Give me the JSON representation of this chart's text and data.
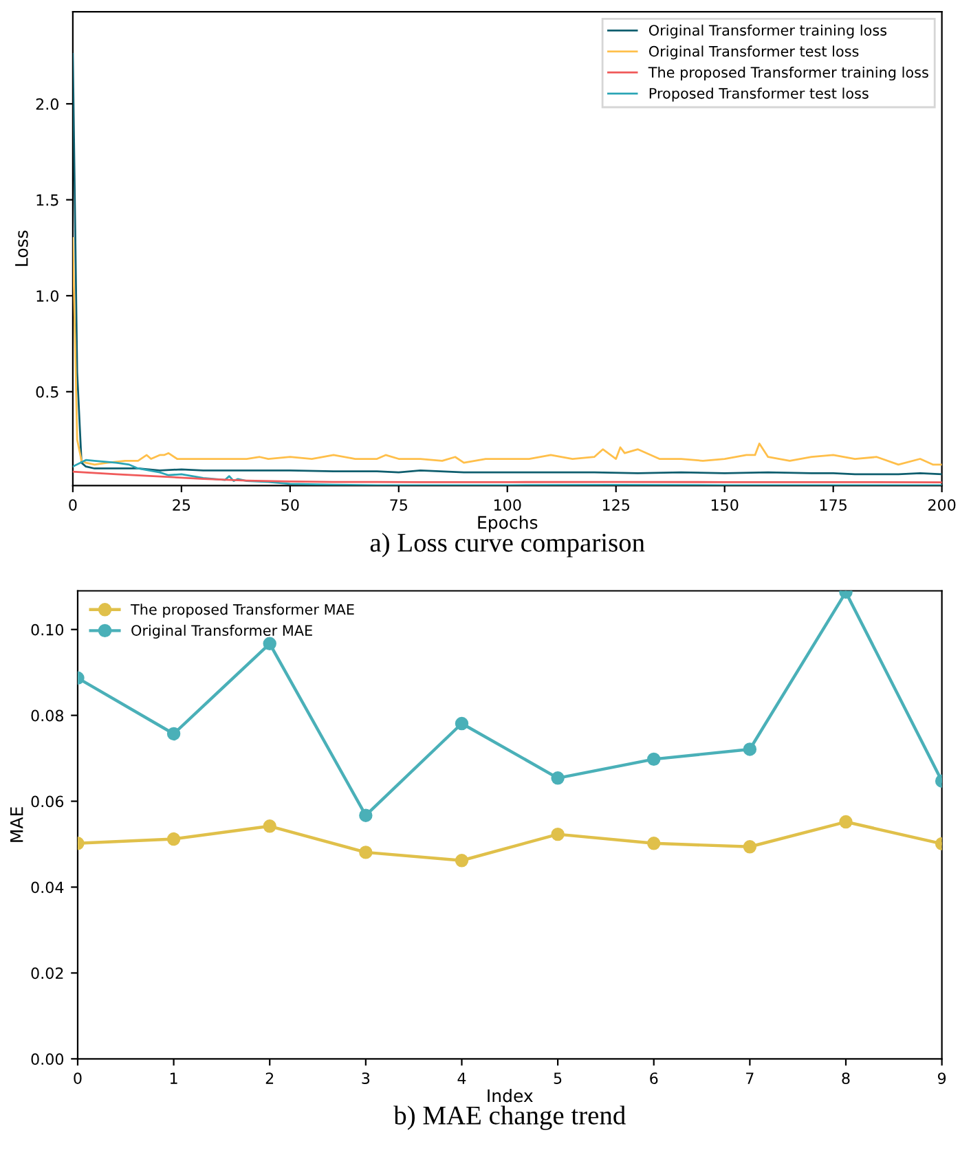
{
  "chart_data": [
    {
      "type": "line",
      "title": "a) Loss curve comparison",
      "xlabel": "Epochs",
      "ylabel": "Loss",
      "xlim": [
        0,
        200
      ],
      "xticks": [
        0,
        25,
        50,
        75,
        100,
        125,
        150,
        175,
        200
      ],
      "ylim": [
        0.011,
        2.48
      ],
      "yticks": [
        0.5,
        {
          "value": 1,
          "label": "1.0"
        },
        1.5,
        {
          "value": 2,
          "label": "2.0"
        }
      ],
      "legend": "top right",
      "grid": false,
      "marker": "none",
      "line_style": "solid",
      "series": [
        {
          "name": "Original Transformer training loss",
          "color": "#0f5e6e",
          "x": [
            0,
            1,
            2,
            3,
            5,
            10,
            15,
            20,
            25,
            30,
            40,
            50,
            60,
            70,
            75,
            80,
            90,
            100,
            110,
            120,
            130,
            140,
            150,
            160,
            170,
            175,
            180,
            190,
            195,
            200
          ],
          "values": [
            2.26,
            0.6,
            0.13,
            0.11,
            0.1,
            0.1,
            0.1,
            0.09,
            0.095,
            0.09,
            0.09,
            0.09,
            0.085,
            0.085,
            0.08,
            0.09,
            0.08,
            0.08,
            0.08,
            0.08,
            0.075,
            0.08,
            0.075,
            0.08,
            0.075,
            0.075,
            0.07,
            0.07,
            0.075,
            0.07
          ]
        },
        {
          "name": "Original Transformer test loss",
          "color": "#ffbf4a",
          "x": [
            0,
            1,
            2,
            3,
            5,
            8,
            12,
            15,
            17,
            18,
            20,
            21,
            22,
            24,
            27,
            30,
            35,
            40,
            43,
            45,
            50,
            55,
            60,
            65,
            70,
            72,
            75,
            80,
            85,
            88,
            90,
            95,
            100,
            105,
            110,
            115,
            120,
            122,
            125,
            126,
            127,
            130,
            135,
            140,
            145,
            150,
            155,
            157,
            158,
            160,
            165,
            170,
            175,
            180,
            185,
            190,
            195,
            198,
            200
          ],
          "values": [
            1.3,
            0.25,
            0.14,
            0.13,
            0.12,
            0.13,
            0.14,
            0.14,
            0.17,
            0.15,
            0.17,
            0.17,
            0.18,
            0.15,
            0.15,
            0.15,
            0.15,
            0.15,
            0.16,
            0.15,
            0.16,
            0.15,
            0.17,
            0.15,
            0.15,
            0.17,
            0.15,
            0.15,
            0.14,
            0.16,
            0.13,
            0.15,
            0.15,
            0.15,
            0.17,
            0.15,
            0.16,
            0.2,
            0.15,
            0.21,
            0.18,
            0.2,
            0.15,
            0.15,
            0.14,
            0.15,
            0.17,
            0.17,
            0.23,
            0.16,
            0.14,
            0.16,
            0.17,
            0.15,
            0.16,
            0.12,
            0.15,
            0.12,
            0.12
          ]
        },
        {
          "name": "The proposed Transformer training loss",
          "color": "#f05a5a",
          "x": [
            0,
            10,
            20,
            30,
            40,
            50,
            60,
            70,
            80,
            100,
            125,
            150,
            175,
            200
          ],
          "values": [
            0.083,
            0.07,
            0.058,
            0.046,
            0.037,
            0.032,
            0.03,
            0.03,
            0.029,
            0.029,
            0.03,
            0.029,
            0.029,
            0.028
          ]
        },
        {
          "name": "Proposed Transformer test loss",
          "color": "#2aa5b5",
          "x": [
            0,
            3,
            5,
            10,
            13,
            15,
            20,
            22,
            25,
            30,
            35,
            36,
            37,
            38,
            40,
            45,
            50,
            60,
            70,
            100,
            125,
            150,
            200
          ],
          "values": [
            0.11,
            0.144,
            0.14,
            0.13,
            0.12,
            0.1,
            0.08,
            0.065,
            0.07,
            0.05,
            0.04,
            0.06,
            0.035,
            0.045,
            0.035,
            0.03,
            0.02,
            0.015,
            0.013,
            0.013,
            0.014,
            0.013,
            0.013
          ]
        }
      ]
    },
    {
      "type": "line",
      "title": "b) MAE change trend",
      "xlabel": "Index",
      "ylabel": "MAE",
      "x": [
        0,
        1,
        2,
        3,
        4,
        5,
        6,
        7,
        8,
        9
      ],
      "xlim": [
        0,
        9
      ],
      "xticks": [
        0,
        1,
        2,
        3,
        4,
        5,
        6,
        7,
        8,
        9
      ],
      "ylim": [
        0,
        0.109
      ],
      "yticks": [
        {
          "value": 0,
          "label": "0.00"
        },
        {
          "value": 0.02,
          "label": "0.02"
        },
        {
          "value": 0.04,
          "label": "0.04"
        },
        {
          "value": 0.06,
          "label": "0.06"
        },
        {
          "value": 0.08,
          "label": "0.08"
        },
        {
          "value": 0.1,
          "label": "0.10"
        }
      ],
      "legend": "top left",
      "grid": false,
      "marker": "circle",
      "line_style": "solid",
      "series": [
        {
          "name": "The proposed Transformer MAE",
          "color": "#e0c04a",
          "values": [
            0.0502,
            0.0512,
            0.0542,
            0.0481,
            0.0462,
            0.0523,
            0.0502,
            0.0494,
            0.0552,
            0.0501
          ]
        },
        {
          "name": "Original Transformer MAE",
          "color": "#4ab0b8",
          "values": [
            0.0887,
            0.0757,
            0.0967,
            0.0567,
            0.0781,
            0.0654,
            0.0698,
            0.0721,
            0.1087,
            0.0647
          ]
        }
      ]
    }
  ]
}
